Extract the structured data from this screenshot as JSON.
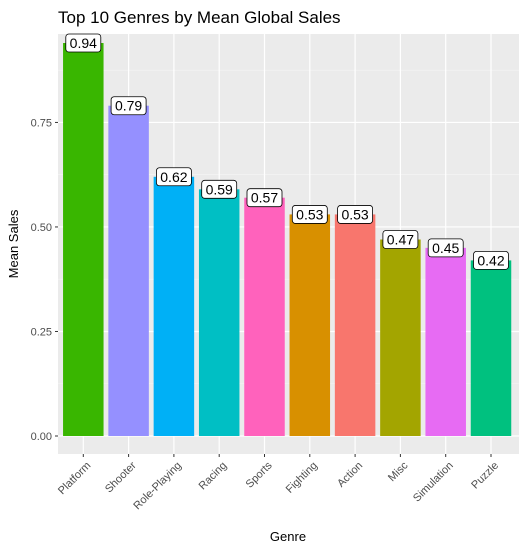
{
  "chart_data": {
    "type": "bar",
    "title": "Top 10 Genres by Mean Global Sales",
    "xlabel": "Genre",
    "ylabel": "Mean Sales",
    "categories": [
      "Platform",
      "Shooter",
      "Role-Playing",
      "Racing",
      "Sports",
      "Fighting",
      "Action",
      "Misc",
      "Simulation",
      "Puzzle"
    ],
    "values": [
      0.94,
      0.79,
      0.62,
      0.59,
      0.57,
      0.53,
      0.53,
      0.47,
      0.45,
      0.42
    ],
    "labels": [
      "0.94",
      "0.79",
      "0.62",
      "0.59",
      "0.57",
      "0.53",
      "0.53",
      "0.47",
      "0.45",
      "0.42"
    ],
    "colors": [
      "#39B600",
      "#9590FF",
      "#00B0F6",
      "#00BFC4",
      "#FF62BC",
      "#D89000",
      "#F8766D",
      "#A3A500",
      "#E76BF3",
      "#00C17F"
    ],
    "yticks": [
      0,
      0.25,
      0.5,
      0.75
    ],
    "ytick_labels": [
      "0.00",
      "0.25",
      "0.50",
      "0.75"
    ],
    "ylim": [
      0,
      0.94
    ],
    "grid": true,
    "background": "#EBEBEB",
    "legend": "none"
  }
}
